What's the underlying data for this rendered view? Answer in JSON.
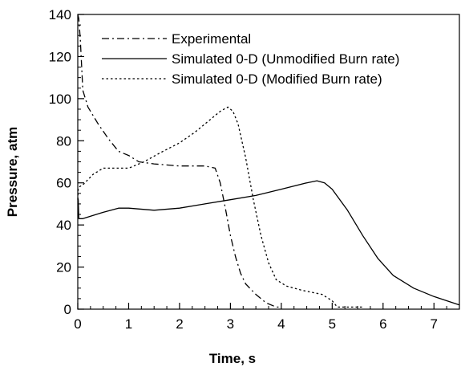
{
  "chart_data": {
    "type": "line",
    "title": "",
    "xlabel": "Time, s",
    "ylabel": "Pressure, atm",
    "xlim": [
      0,
      7.5
    ],
    "ylim": [
      0,
      140
    ],
    "x_ticks": [
      0,
      1,
      2,
      3,
      4,
      5,
      6,
      7
    ],
    "y_ticks": [
      0,
      20,
      40,
      60,
      80,
      100,
      120,
      140
    ],
    "grid": false,
    "legend_position": "top-left",
    "series": [
      {
        "name": "Experimental",
        "line_style": "dash-dot",
        "color": "#000000",
        "x": [
          0.0,
          0.02,
          0.05,
          0.1,
          0.2,
          0.4,
          0.6,
          0.8,
          1.0,
          1.2,
          1.5,
          2.0,
          2.5,
          2.7,
          2.8,
          2.9,
          3.0,
          3.1,
          3.2,
          3.3,
          3.5,
          3.7,
          3.9,
          4.0
        ],
        "y": [
          140.0,
          138.0,
          128.0,
          104.0,
          96.0,
          88.0,
          81.0,
          75.0,
          73.0,
          70.0,
          69.0,
          68.0,
          68.0,
          67.0,
          60.0,
          48.0,
          35.0,
          25.0,
          17.0,
          12.0,
          7.0,
          3.0,
          1.0,
          1.0
        ]
      },
      {
        "name": "Simulated 0-D (Unmodified Burn rate)",
        "line_style": "solid",
        "color": "#000000",
        "x": [
          0.0,
          0.01,
          0.02,
          0.1,
          0.5,
          0.8,
          1.0,
          1.5,
          2.0,
          2.5,
          3.0,
          3.5,
          4.0,
          4.5,
          4.7,
          4.85,
          5.0,
          5.3,
          5.6,
          5.9,
          6.2,
          6.6,
          7.0,
          7.5
        ],
        "y": [
          53.0,
          52.0,
          43.0,
          43.0,
          46.0,
          48.0,
          48.0,
          47.0,
          48.0,
          50.0,
          52.0,
          54.0,
          57.0,
          60.0,
          61.0,
          60.0,
          57.0,
          47.0,
          35.0,
          24.0,
          16.0,
          10.0,
          6.0,
          2.0
        ]
      },
      {
        "name": "Simulated 0-D (Modified Burn rate)",
        "line_style": "dotted",
        "color": "#000000",
        "x": [
          0.0,
          0.01,
          0.02,
          0.1,
          0.3,
          0.5,
          0.8,
          1.0,
          1.3,
          1.6,
          2.0,
          2.3,
          2.6,
          2.8,
          2.95,
          3.05,
          3.15,
          3.3,
          3.45,
          3.6,
          3.75,
          3.9,
          4.1,
          4.4,
          4.8,
          5.0,
          5.1,
          5.3,
          5.6
        ],
        "y": [
          52.0,
          57.0,
          58.0,
          59.0,
          64.0,
          67.0,
          67.0,
          67.0,
          70.0,
          74.0,
          79.0,
          84.0,
          90.0,
          94.0,
          96.0,
          94.0,
          88.0,
          72.0,
          52.0,
          35.0,
          22.0,
          14.0,
          11.0,
          9.0,
          7.0,
          4.0,
          1.0,
          1.0,
          1.0
        ]
      }
    ]
  }
}
